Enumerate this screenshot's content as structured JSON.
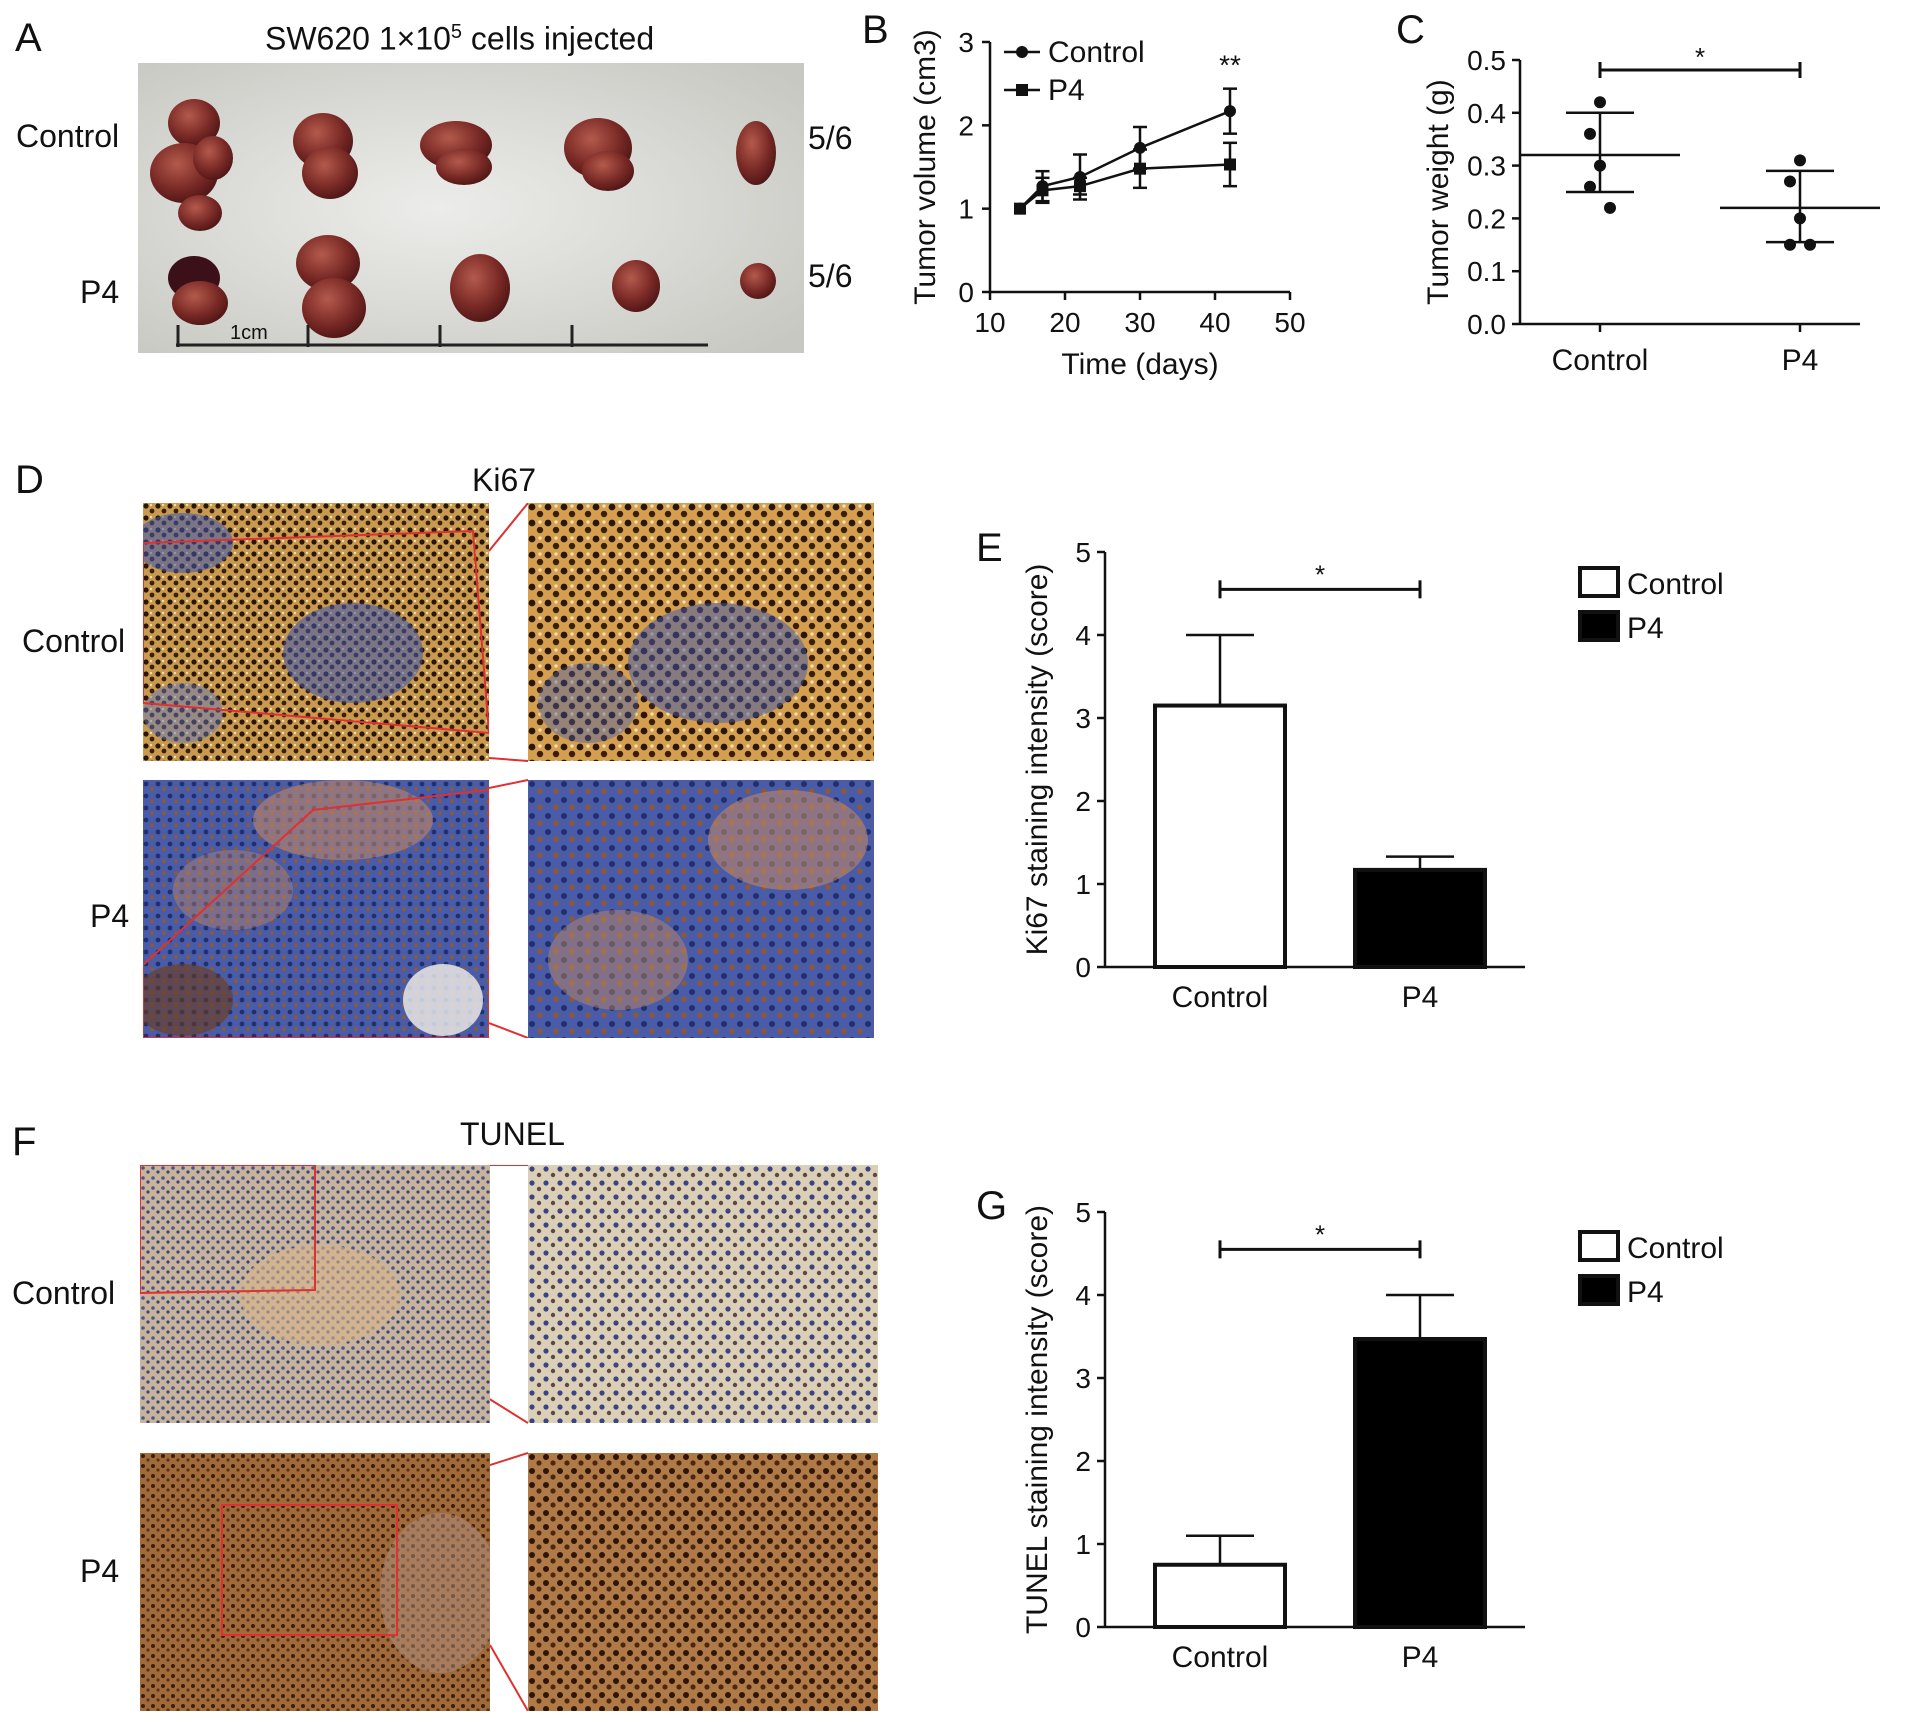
{
  "panels": {
    "A": {
      "letter": "A",
      "title_prefix": "SW620 1×10",
      "title_sup": "5",
      "title_suffix": " cells injected",
      "row_labels": [
        "Control",
        "P4"
      ],
      "ratios": [
        "5/6",
        "5/6"
      ],
      "scale_label": "1cm"
    },
    "B": {
      "letter": "B"
    },
    "C": {
      "letter": "C"
    },
    "D": {
      "letter": "D",
      "title": "Ki67",
      "row_labels": [
        "Control",
        "P4"
      ]
    },
    "E": {
      "letter": "E"
    },
    "F": {
      "letter": "F",
      "title": "TUNEL",
      "row_labels": [
        "Control",
        "P4"
      ]
    },
    "G": {
      "letter": "G"
    }
  },
  "chart_data": [
    {
      "id": "B",
      "type": "line",
      "xlabel": "Time (days)",
      "ylabel": "Tumor volume (cm3)",
      "xlim": [
        10,
        50
      ],
      "ylim": [
        0,
        3
      ],
      "xticks": [
        10,
        20,
        30,
        40,
        50
      ],
      "yticks": [
        0,
        1,
        2,
        3
      ],
      "legend": "top-left",
      "annotation": "**",
      "series": [
        {
          "name": "Control",
          "marker": "circle",
          "x": [
            14,
            17,
            22,
            30,
            42
          ],
          "y": [
            1.0,
            1.27,
            1.38,
            1.73,
            2.17
          ],
          "err": [
            0,
            0.18,
            0.27,
            0.25,
            0.27
          ]
        },
        {
          "name": "P4",
          "marker": "square",
          "x": [
            14,
            17,
            22,
            30,
            42
          ],
          "y": [
            1.0,
            1.22,
            1.27,
            1.48,
            1.53
          ],
          "err": [
            0,
            0.15,
            0.1,
            0.23,
            0.26
          ]
        }
      ]
    },
    {
      "id": "C",
      "type": "scatter",
      "ylabel": "Tumor weight (g)",
      "categories": [
        "Control",
        "P4"
      ],
      "ylim": [
        0,
        0.5
      ],
      "yticks": [
        "0.0",
        "0.1",
        "0.2",
        "0.3",
        "0.4",
        "0.5"
      ],
      "annotation": "*",
      "groups": [
        {
          "name": "Control",
          "points": [
            0.42,
            0.36,
            0.3,
            0.26,
            0.22
          ],
          "mean": 0.32,
          "sd_low": 0.25,
          "sd_high": 0.4
        },
        {
          "name": "P4",
          "points": [
            0.31,
            0.27,
            0.2,
            0.15,
            0.15
          ],
          "mean": 0.22,
          "sd_low": 0.155,
          "sd_high": 0.29
        }
      ]
    },
    {
      "id": "E",
      "type": "bar",
      "ylabel": "Ki67 staining intensity (score)",
      "categories": [
        "Control",
        "P4"
      ],
      "values": [
        3.15,
        1.17
      ],
      "err": [
        0.85,
        0.16
      ],
      "ylim": [
        0,
        5
      ],
      "yticks": [
        0,
        1,
        2,
        3,
        4,
        5
      ],
      "legend": "top-right",
      "annotation": "*",
      "series": [
        {
          "name": "Control",
          "fill": "#ffffff"
        },
        {
          "name": "P4",
          "fill": "#000000"
        }
      ]
    },
    {
      "id": "G",
      "type": "bar",
      "ylabel": "TUNEL staining intensity (score)",
      "categories": [
        "Control",
        "P4"
      ],
      "values": [
        0.75,
        3.47
      ],
      "err": [
        0.35,
        0.53
      ],
      "ylim": [
        0,
        5
      ],
      "yticks": [
        0,
        1,
        2,
        3,
        4,
        5
      ],
      "legend": "top-right",
      "annotation": "*",
      "series": [
        {
          "name": "Control",
          "fill": "#ffffff"
        },
        {
          "name": "P4",
          "fill": "#000000"
        }
      ]
    }
  ],
  "colors": {
    "tumor": "#7a2a26",
    "tumor_highlight": "#a04a40",
    "photo_bg": "#dcdcd6",
    "ki67_brown": "#5a2e12",
    "ki67_blue": "#3a4ea8",
    "tunel_tan": "#c9a37a",
    "tunel_brown": "#8a5024",
    "zoom_line": "#e03030"
  }
}
